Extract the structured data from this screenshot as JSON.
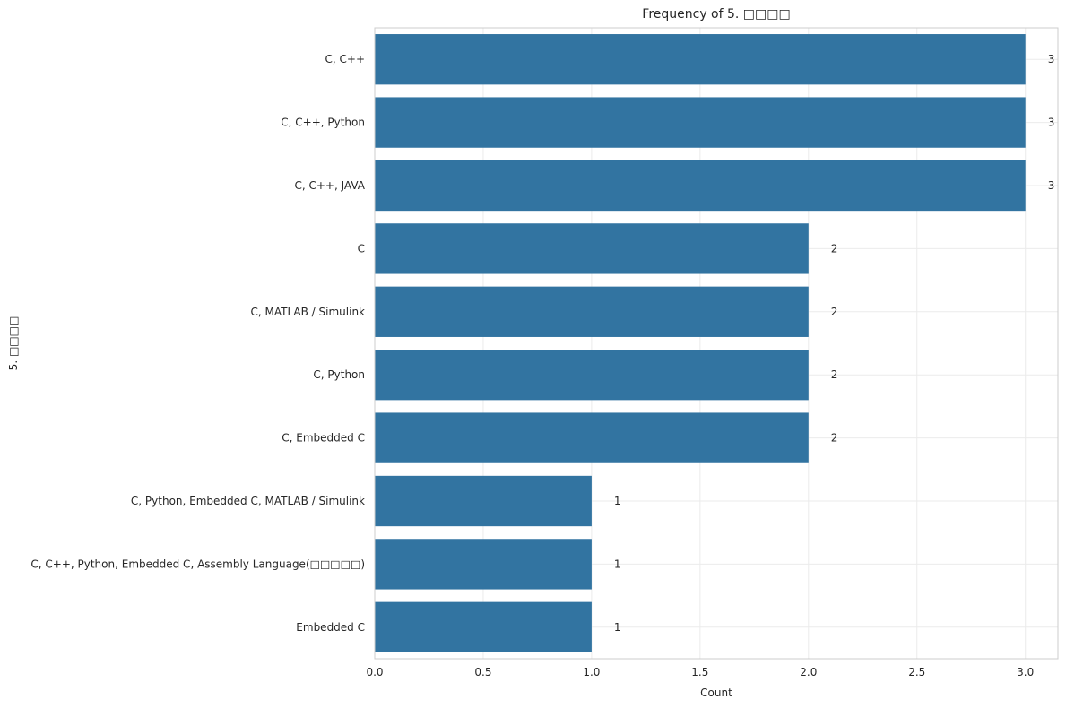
{
  "chart_data": {
    "type": "bar",
    "orientation": "horizontal",
    "title": "Frequency of 5. □□□□",
    "xlabel": "Count",
    "ylabel": "5. □□□□",
    "categories": [
      "C, C++",
      "C, C++, Python",
      "C, C++, JAVA",
      "C",
      "C, MATLAB / Simulink",
      "C, Python",
      "C, Embedded C",
      "C, Python, Embedded C, MATLAB / Simulink",
      "C, C++, Python, Embedded C, Assembly Language(□□□□□)",
      "Embedded C"
    ],
    "values": [
      3,
      3,
      3,
      2,
      2,
      2,
      2,
      1,
      1,
      1
    ],
    "data_labels": [
      "3",
      "3",
      "3",
      "2",
      "2",
      "2",
      "2",
      "1",
      "1",
      "1"
    ],
    "xlim": [
      0,
      3.15
    ],
    "xticks": [
      0.0,
      0.5,
      1.0,
      1.5,
      2.0,
      2.5,
      3.0
    ],
    "xtick_labels": [
      "0.0",
      "0.5",
      "1.0",
      "1.5",
      "2.0",
      "2.5",
      "3.0"
    ],
    "bar_color": "#3274a1",
    "grid": true,
    "legend": false
  }
}
